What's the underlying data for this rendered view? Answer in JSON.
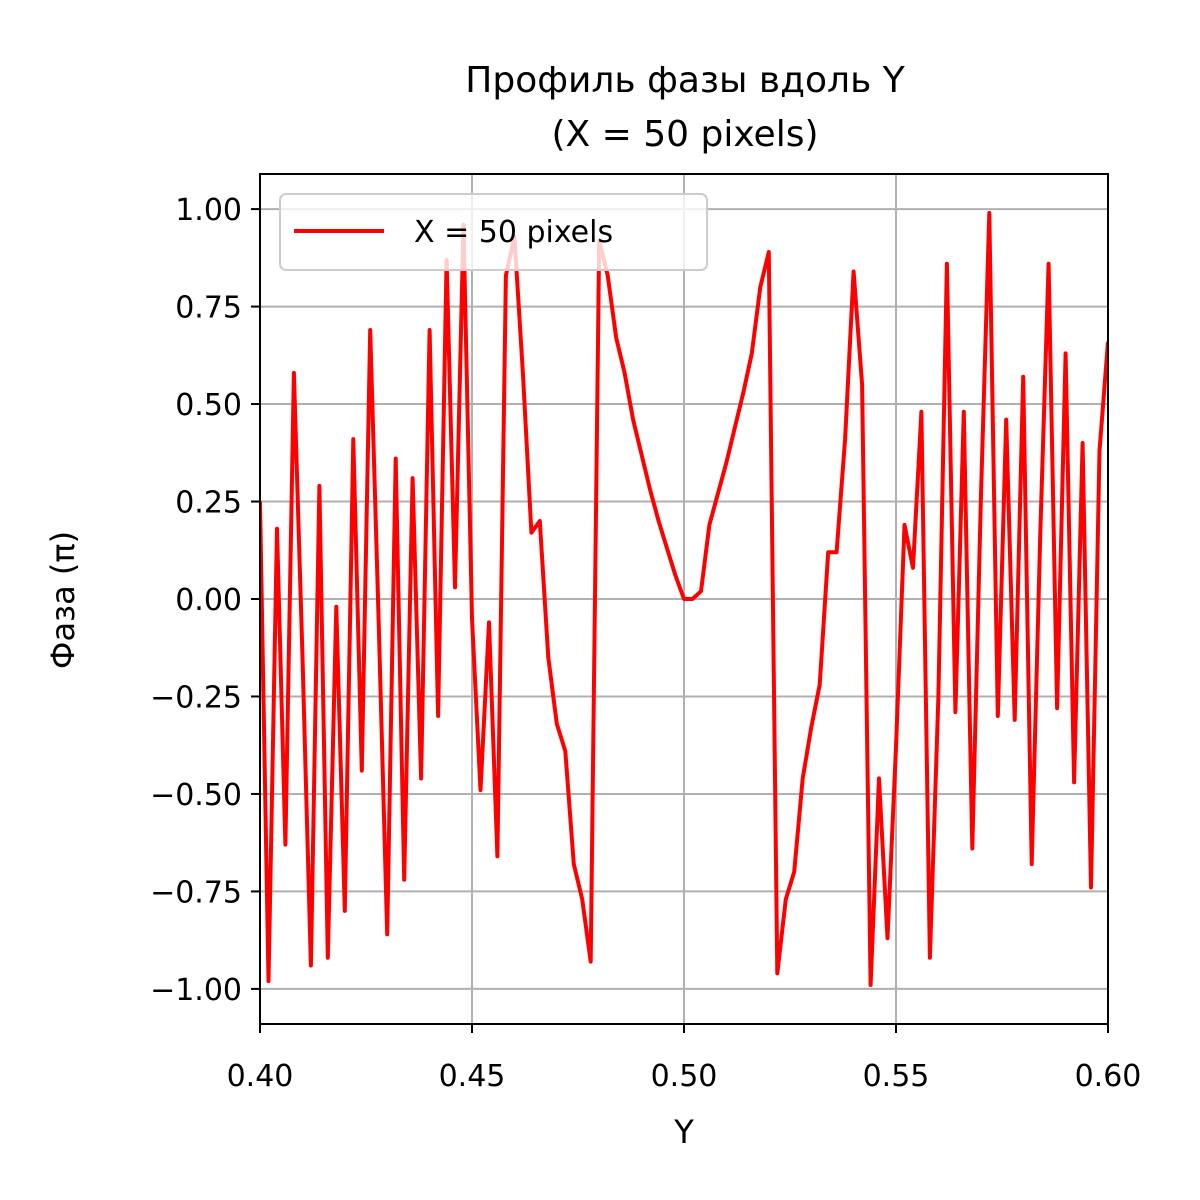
{
  "chart_data": {
    "type": "line",
    "title_line1": "Профиль фазы вдоль Y",
    "title_line2": "(X = 50 pixels)",
    "xlabel": "Y",
    "ylabel": "Фаза (π)",
    "xlim": [
      0.4,
      0.6
    ],
    "ylim": [
      -1.09,
      1.09
    ],
    "xticks": [
      0.4,
      0.45,
      0.5,
      0.55,
      0.6
    ],
    "xtick_labels": [
      "0.40",
      "0.45",
      "0.50",
      "0.55",
      "0.60"
    ],
    "yticks": [
      -1.0,
      -0.75,
      -0.5,
      -0.25,
      0.0,
      0.25,
      0.5,
      0.75,
      1.0
    ],
    "ytick_labels": [
      "−1.00",
      "−0.75",
      "−0.50",
      "−0.25",
      "0.00",
      "0.25",
      "0.50",
      "0.75",
      "1.00"
    ],
    "grid": true,
    "legend_position": "top-left",
    "series": [
      {
        "name": "X = 50 pixels",
        "color": "#ff0000",
        "x": [
          0.4,
          0.402,
          0.404,
          0.406,
          0.408,
          0.41,
          0.412,
          0.414,
          0.416,
          0.418,
          0.42,
          0.422,
          0.424,
          0.426,
          0.428,
          0.43,
          0.432,
          0.434,
          0.436,
          0.438,
          0.44,
          0.442,
          0.444,
          0.446,
          0.448,
          0.45,
          0.452,
          0.454,
          0.456,
          0.458,
          0.46,
          0.462,
          0.464,
          0.466,
          0.468,
          0.47,
          0.472,
          0.474,
          0.476,
          0.478,
          0.48,
          0.482,
          0.484,
          0.486,
          0.488,
          0.49,
          0.492,
          0.494,
          0.496,
          0.498,
          0.5,
          0.502,
          0.504,
          0.506,
          0.508,
          0.51,
          0.512,
          0.514,
          0.516,
          0.518,
          0.52,
          0.522,
          0.524,
          0.526,
          0.528,
          0.53,
          0.532,
          0.534,
          0.536,
          0.538,
          0.54,
          0.542,
          0.544,
          0.546,
          0.548,
          0.55,
          0.552,
          0.554,
          0.556,
          0.558,
          0.56,
          0.562,
          0.564,
          0.566,
          0.568,
          0.57,
          0.572,
          0.574,
          0.576,
          0.578,
          0.58,
          0.582,
          0.584,
          0.586,
          0.588,
          0.59,
          0.592,
          0.594,
          0.596,
          0.598,
          0.6
        ],
        "y": [
          0.25,
          -0.98,
          0.18,
          -0.63,
          0.58,
          -0.14,
          -0.94,
          0.29,
          -0.92,
          -0.02,
          -0.8,
          0.41,
          -0.44,
          0.69,
          -0.06,
          -0.86,
          0.36,
          -0.72,
          0.31,
          -0.46,
          0.69,
          -0.3,
          0.87,
          0.03,
          0.96,
          -0.05,
          -0.49,
          -0.06,
          -0.66,
          0.83,
          0.93,
          0.58,
          0.17,
          0.2,
          -0.15,
          -0.32,
          -0.39,
          -0.68,
          -0.77,
          -0.93,
          0.92,
          0.83,
          0.67,
          0.58,
          0.46,
          0.37,
          0.28,
          0.2,
          0.13,
          0.06,
          0.0,
          0.0,
          0.02,
          0.19,
          0.27,
          0.35,
          0.44,
          0.53,
          0.63,
          0.8,
          0.89,
          -0.96,
          -0.77,
          -0.7,
          -0.46,
          -0.33,
          -0.22,
          0.12,
          0.12,
          0.41,
          0.84,
          0.55,
          -0.99,
          -0.46,
          -0.87,
          -0.38,
          0.19,
          0.08,
          0.48,
          -0.92,
          -0.25,
          0.86,
          -0.29,
          0.48,
          -0.64,
          0.25,
          0.99,
          -0.3,
          0.46,
          -0.31,
          0.57,
          -0.68,
          0.16,
          0.86,
          -0.28,
          0.63,
          -0.47,
          0.4,
          -0.74,
          0.38,
          0.66
        ]
      }
    ]
  }
}
